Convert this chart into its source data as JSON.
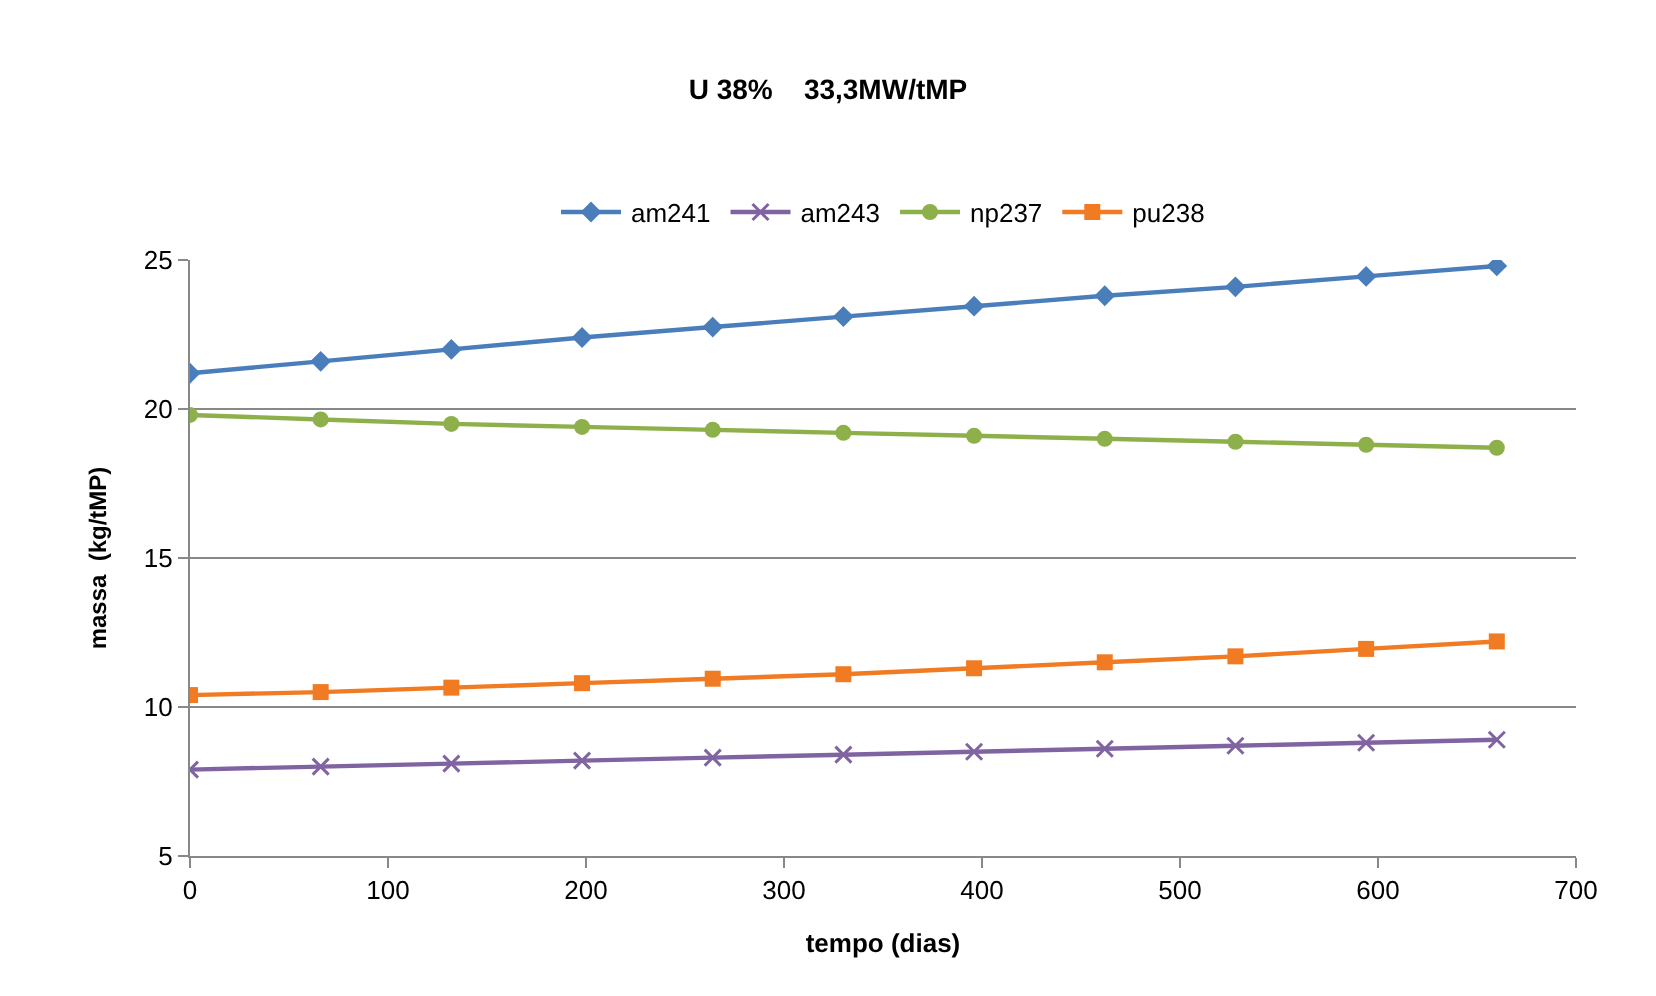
{
  "chart_data": {
    "type": "line",
    "title": "U 38%    33,3MW/tMP",
    "xlabel": "tempo (dias)",
    "ylabel": "massa  (kg/tMP)",
    "x": [
      0,
      66,
      132,
      198,
      264,
      330,
      396,
      462,
      528,
      594,
      660
    ],
    "xlim": [
      0,
      700
    ],
    "xticks": [
      0,
      100,
      200,
      300,
      400,
      500,
      600,
      700
    ],
    "ylim": [
      5,
      25
    ],
    "yticks": [
      5,
      10,
      15,
      20,
      25
    ],
    "grid": "y",
    "legend": "top",
    "line_style": "solid",
    "series": [
      {
        "name": "am241",
        "color": "#4a7ebb",
        "marker": "diamond",
        "values": [
          21.2,
          21.6,
          22.0,
          22.4,
          22.75,
          23.1,
          23.45,
          23.8,
          24.1,
          24.45,
          24.8
        ]
      },
      {
        "name": "am243",
        "color": "#8064a2",
        "marker": "cross",
        "values": [
          7.9,
          8.0,
          8.1,
          8.2,
          8.3,
          8.4,
          8.5,
          8.6,
          8.7,
          8.8,
          8.9
        ]
      },
      {
        "name": "np237",
        "color": "#8db04a",
        "marker": "circle",
        "values": [
          19.8,
          19.65,
          19.5,
          19.4,
          19.3,
          19.2,
          19.1,
          19.0,
          18.9,
          18.8,
          18.7
        ]
      },
      {
        "name": "pu238",
        "color": "#f07b22",
        "marker": "square",
        "values": [
          10.4,
          10.5,
          10.65,
          10.8,
          10.95,
          11.1,
          11.3,
          11.5,
          11.7,
          11.95,
          12.2
        ]
      }
    ]
  }
}
